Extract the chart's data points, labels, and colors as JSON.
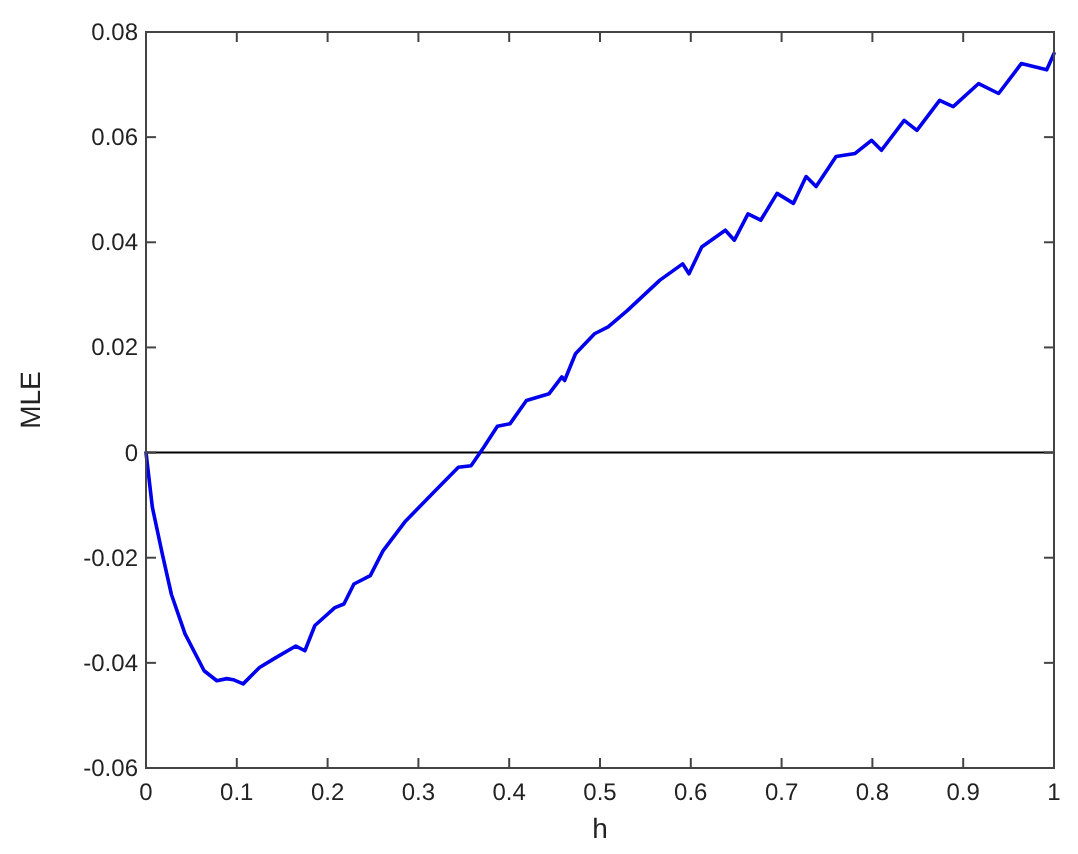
{
  "chart_data": {
    "type": "line",
    "xlabel": "h",
    "ylabel": "MLE",
    "xlim": [
      0,
      1
    ],
    "xticks": [
      0,
      0.1,
      0.2,
      0.3,
      0.4,
      0.5,
      0.6,
      0.7,
      0.8,
      0.9,
      1
    ],
    "ylim": [
      -0.06,
      0.08
    ],
    "yticks": [
      -0.06,
      -0.04,
      -0.02,
      0,
      0.02,
      0.04,
      0.06,
      0.08
    ],
    "line_style": "solid",
    "ref_lines": [
      {
        "axis": "y",
        "value": 0,
        "color": "#000000"
      }
    ],
    "series": [
      {
        "color": "#0000ee",
        "x": [
          0,
          0.007,
          0.018,
          0.028,
          0.043,
          0.064,
          0.078,
          0.089,
          0.096,
          0.107,
          0.125,
          0.143,
          0.165,
          0.175,
          0.186,
          0.208,
          0.218,
          0.229,
          0.247,
          0.261,
          0.286,
          0.315,
          0.344,
          0.358,
          0.372,
          0.387,
          0.401,
          0.419,
          0.444,
          0.458,
          0.461,
          0.473,
          0.494,
          0.509,
          0.53,
          0.566,
          0.591,
          0.598,
          0.612,
          0.638,
          0.648,
          0.663,
          0.677,
          0.695,
          0.713,
          0.727,
          0.738,
          0.76,
          0.781,
          0.799,
          0.81,
          0.835,
          0.849,
          0.874,
          0.889,
          0.917,
          0.939,
          0.964,
          0.992,
          1
        ],
        "values": [
          0,
          -0.0104,
          -0.0193,
          -0.027,
          -0.0345,
          -0.0415,
          -0.0434,
          -0.043,
          -0.0432,
          -0.044,
          -0.0409,
          -0.039,
          -0.0368,
          -0.0377,
          -0.0329,
          -0.0295,
          -0.0288,
          -0.025,
          -0.0234,
          -0.0187,
          -0.013,
          -0.0079,
          -0.0028,
          -0.0025,
          0.001,
          0.005,
          0.0055,
          0.0099,
          0.0112,
          0.0144,
          0.0137,
          0.0188,
          0.0226,
          0.0239,
          0.027,
          0.0328,
          0.0359,
          0.034,
          0.0391,
          0.0423,
          0.0404,
          0.0454,
          0.0442,
          0.0493,
          0.0474,
          0.0525,
          0.0506,
          0.0563,
          0.0569,
          0.0594,
          0.0575,
          0.0632,
          0.0613,
          0.067,
          0.0658,
          0.0702,
          0.0683,
          0.074,
          0.0728,
          0.0759
        ]
      }
    ]
  }
}
